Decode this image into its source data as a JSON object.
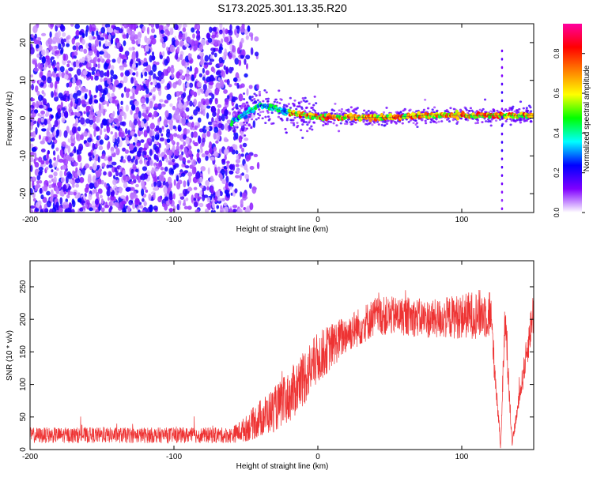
{
  "title": "S173.2025.301.13.35.R20",
  "chart_data": [
    {
      "type": "heatmap",
      "title": "S173.2025.301.13.35.R20",
      "xlabel": "Height of straight line (km)",
      "ylabel": "Frequency (Hz)",
      "xlim": [
        -200,
        150
      ],
      "ylim": [
        -25,
        25
      ],
      "xticks": [
        -200,
        -100,
        0,
        100
      ],
      "yticks": [
        -20,
        -10,
        0,
        10,
        20
      ],
      "colorbar": {
        "label": "Normalized spectral amplitude",
        "range": [
          0,
          0.95
        ],
        "ticks": [
          0.0,
          0.2,
          0.4,
          0.6,
          0.8
        ],
        "tick_labels": [
          "0.0",
          "0.2",
          "0.4",
          "0.6",
          "0.8"
        ],
        "colors": [
          "#ffffff",
          "#8000ff",
          "#0000ff",
          "#00ffff",
          "#00ff00",
          "#ffff00",
          "#ff8000",
          "#ff0000",
          "#ff00a0"
        ]
      },
      "line_center_hz": [
        {
          "x": -60,
          "y": -1.0
        },
        {
          "x": -40,
          "y": 3.5
        },
        {
          "x": -20,
          "y": 1.5
        },
        {
          "x": 0,
          "y": 0.3
        },
        {
          "x": 20,
          "y": 0.3
        },
        {
          "x": 50,
          "y": 0.2
        },
        {
          "x": 80,
          "y": 0.8
        },
        {
          "x": 110,
          "y": 0.7
        },
        {
          "x": 150,
          "y": 0.7
        }
      ],
      "spike_x": 128
    },
    {
      "type": "line",
      "title": "",
      "xlabel": "Height of straight line (km)",
      "ylabel": "SNR (10 * v/v)",
      "xlim": [
        -200,
        150
      ],
      "ylim": [
        0,
        290
      ],
      "xticks": [
        -200,
        -100,
        0,
        100
      ],
      "yticks": [
        0,
        50,
        100,
        150,
        200,
        250
      ],
      "series": [
        {
          "name": "SNR",
          "color": "#ee3333",
          "envelope_x": [
            -200,
            -60,
            -50,
            -40,
            -30,
            -20,
            -10,
            0,
            10,
            20,
            30,
            40,
            60,
            80,
            100,
            120,
            127,
            130,
            135,
            150
          ],
          "envelope_mean": [
            22,
            22,
            32,
            48,
            62,
            80,
            110,
            140,
            160,
            178,
            190,
            205,
            205,
            200,
            205,
            210,
            5,
            205,
            10,
            215
          ],
          "envelope_spread": [
            12,
            12,
            20,
            30,
            35,
            40,
            45,
            40,
            35,
            30,
            30,
            30,
            30,
            30,
            35,
            40,
            5,
            40,
            5,
            35
          ]
        }
      ]
    }
  ]
}
